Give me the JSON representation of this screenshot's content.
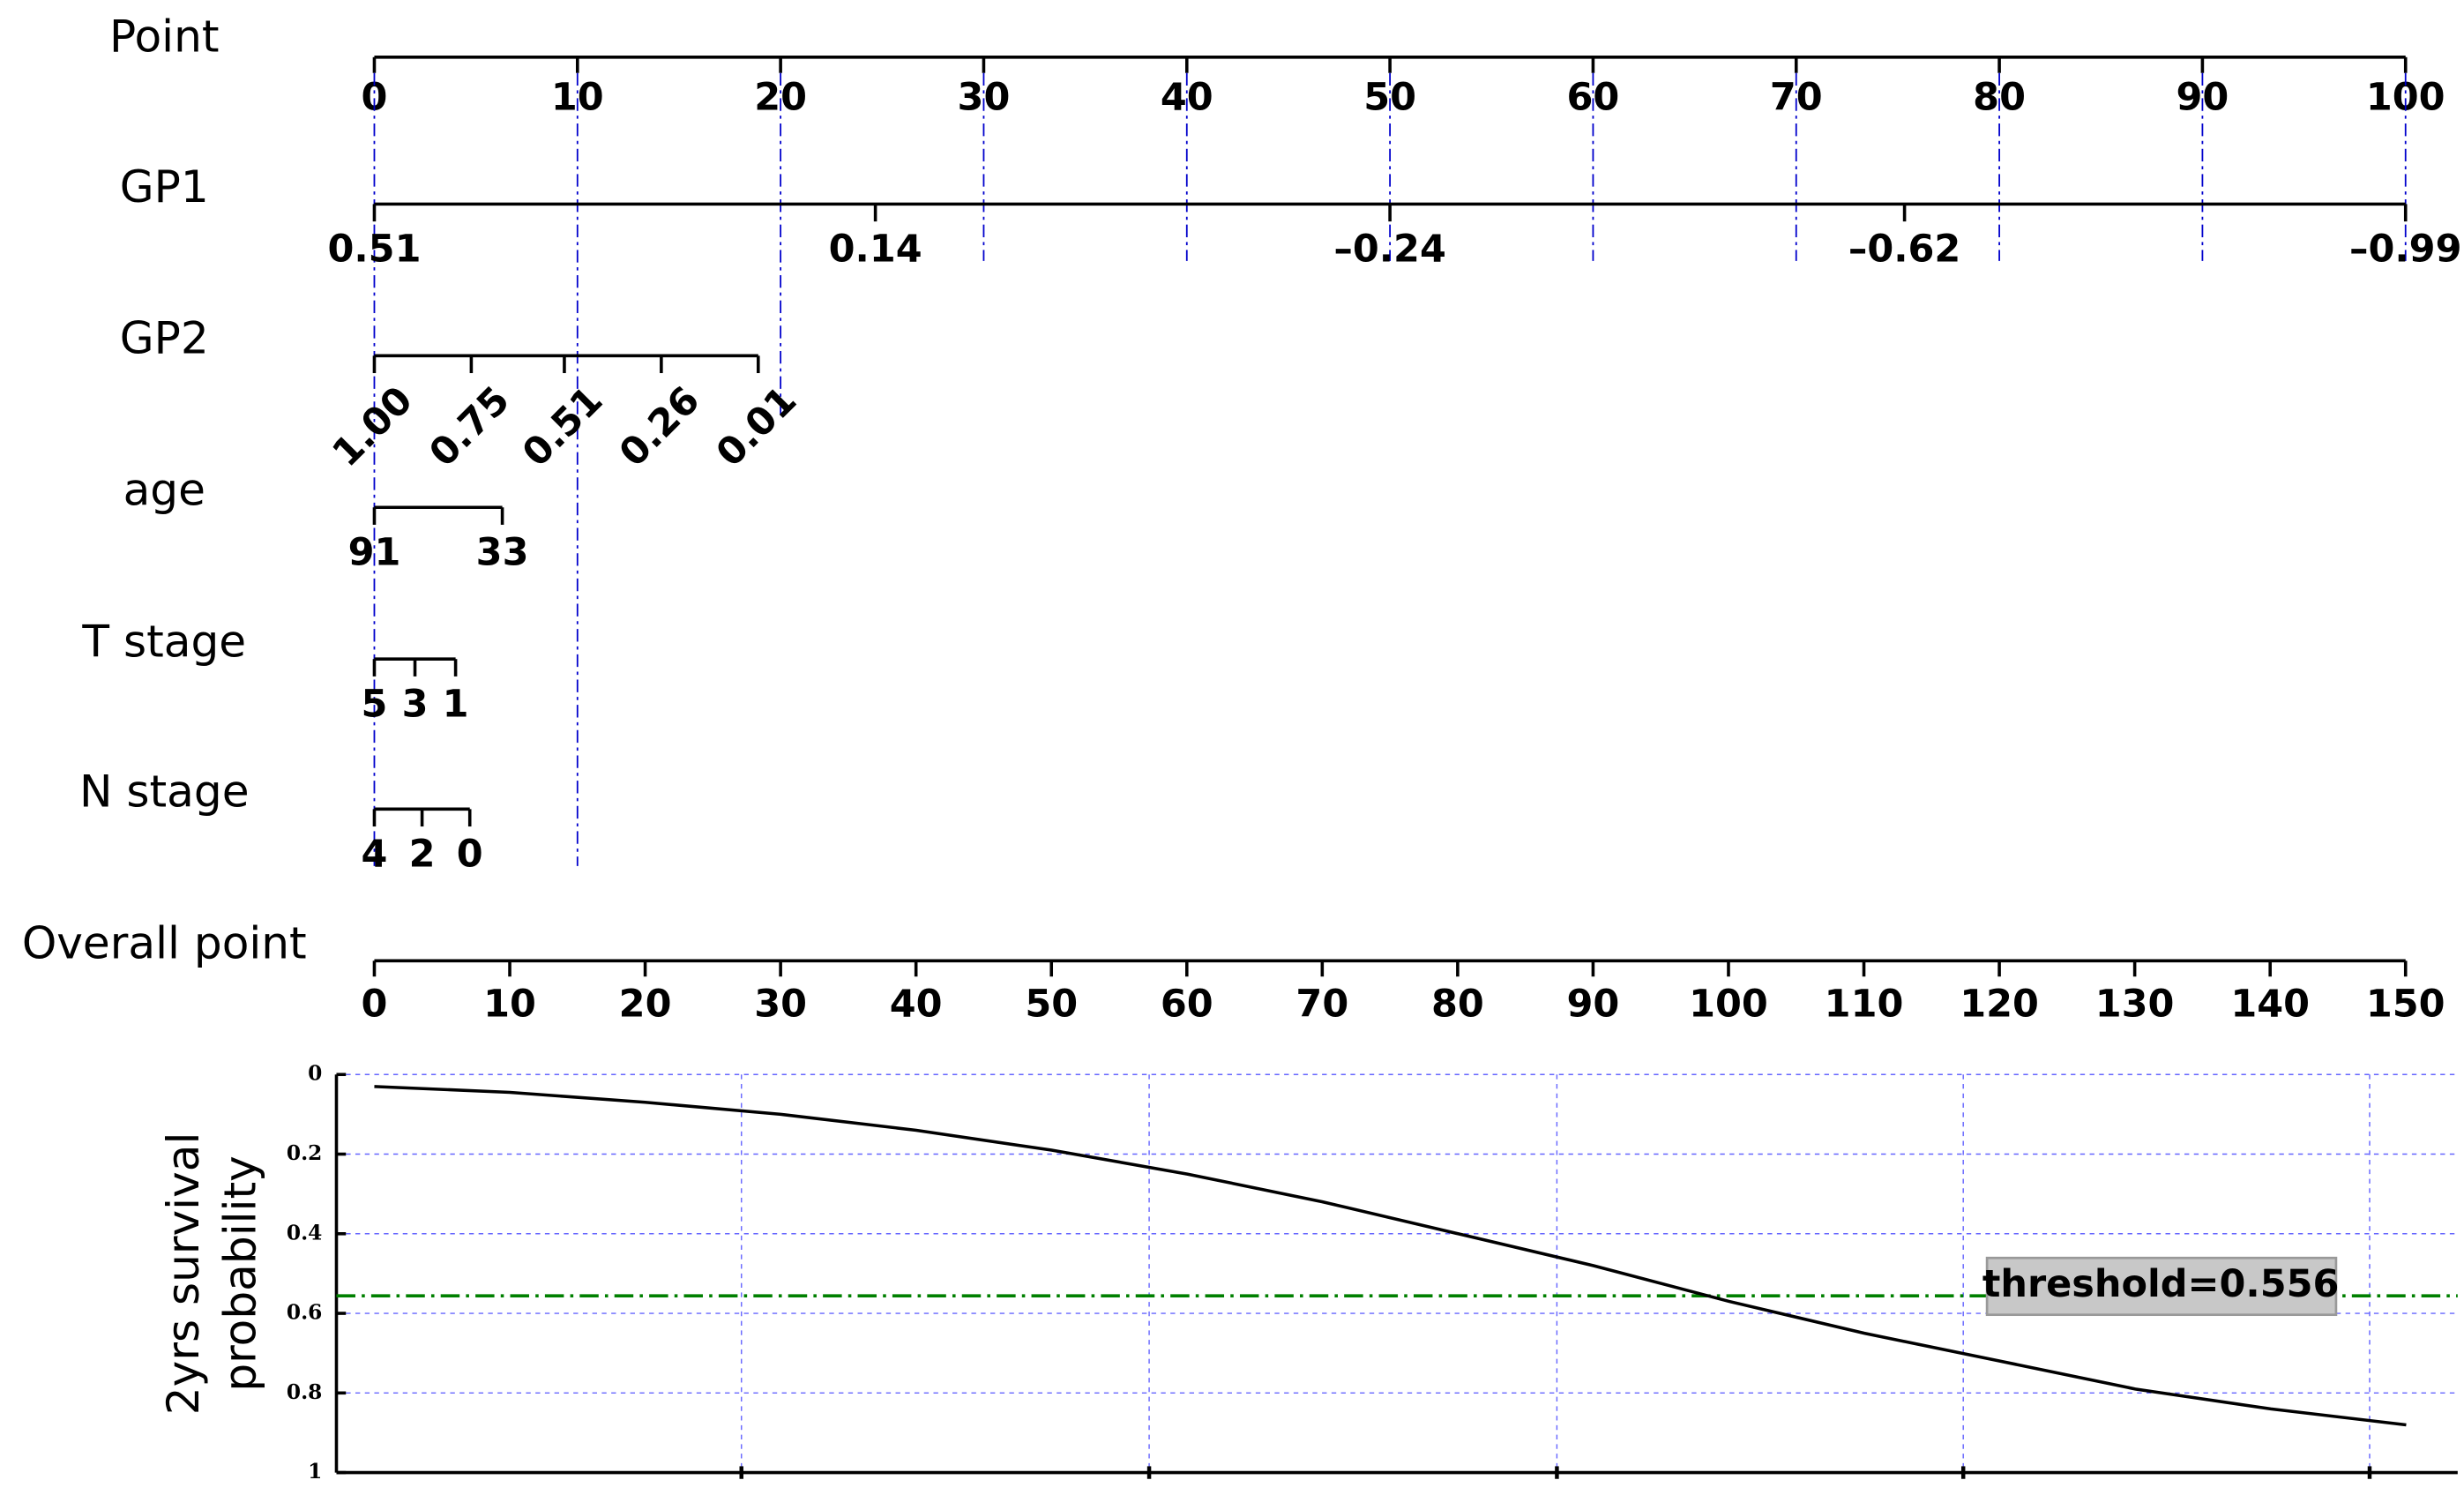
{
  "chart_data": {
    "type": "nomogram",
    "points_axis": {
      "name": "Point",
      "lim": [
        0,
        100
      ],
      "ticks": [
        0,
        10,
        20,
        30,
        40,
        50,
        60,
        70,
        80,
        90,
        100
      ]
    },
    "variables": [
      {
        "name": "GP1",
        "lim": [
          0.51,
          -0.99
        ],
        "points": [
          0,
          100
        ],
        "ticks": [
          0.51,
          0.14,
          {
            "value": -0.24,
            "label": "–0.24"
          },
          {
            "value": -0.62,
            "label": "–0.62"
          },
          {
            "value": -0.99,
            "label": "–0.99"
          }
        ]
      },
      {
        "name": "GP2",
        "lim": [
          1,
          0.01
        ],
        "points": [
          0,
          18.9
        ],
        "rotated": true,
        "ticks": [
          {
            "value": 1,
            "label": "1.00"
          },
          0.75,
          0.51,
          0.26,
          0.01
        ]
      },
      {
        "name": "age",
        "lim": [
          91,
          33
        ],
        "points": [
          0,
          6.3
        ],
        "ticks": [
          91,
          33
        ]
      },
      {
        "name": "T stage",
        "lim": [
          5,
          1
        ],
        "points": [
          0,
          4
        ],
        "ticks": [
          5,
          3,
          1
        ]
      },
      {
        "name": "N stage",
        "lim": [
          4,
          0
        ],
        "points": [
          0,
          4.7
        ],
        "ticks": [
          4,
          2,
          0
        ]
      }
    ],
    "total_axis": {
      "name": "Overall point",
      "lim": [
        0,
        150
      ],
      "ticks": [
        0,
        10,
        20,
        30,
        40,
        50,
        60,
        70,
        80,
        90,
        100,
        110,
        120,
        130,
        140,
        150
      ]
    },
    "probability": {
      "type": "line",
      "ylabel": [
        "2yrs survival",
        "probability"
      ],
      "x": [
        0,
        10,
        20,
        30,
        40,
        50,
        60,
        70,
        80,
        90,
        100,
        110,
        120,
        130,
        140,
        150
      ],
      "values": [
        0.03,
        0.045,
        0.07,
        0.1,
        0.14,
        0.19,
        0.25,
        0.32,
        0.4,
        0.48,
        0.57,
        0.65,
        0.72,
        0.79,
        0.84,
        0.88
      ],
      "color": "#000000",
      "xlim": [
        -2.8,
        153.8
      ],
      "xticks": [
        27.1,
        57.2,
        87.3,
        117.3,
        147.3
      ],
      "ylim": [
        0,
        1
      ],
      "yticks": [
        0,
        0.2,
        0.4,
        0.6,
        0.8,
        1
      ],
      "grid": true,
      "threshold": {
        "value": 0.556,
        "label": "threshold=0.556",
        "color": "#008000"
      }
    }
  }
}
